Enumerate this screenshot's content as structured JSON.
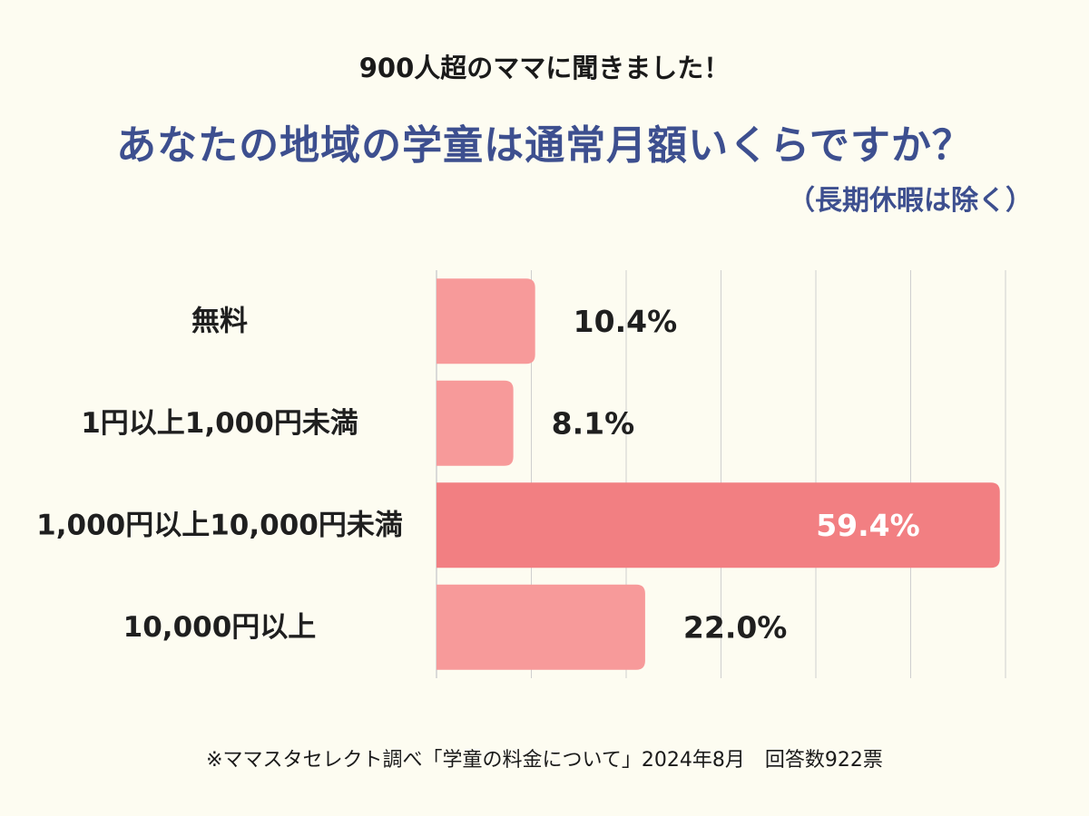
{
  "header": {
    "subtitle": "900人超のママに聞きました！",
    "title": "あなたの地域の学童は通常月額いくらですか？",
    "note": "（長期休暇は除く）"
  },
  "chart_data": {
    "type": "bar",
    "orientation": "horizontal",
    "categories": [
      "無料",
      "1円以上1,000円未満",
      "1,000円以上10,000円未満",
      "10,000円以上"
    ],
    "values": [
      10.4,
      8.1,
      59.4,
      22.0
    ],
    "value_labels": [
      "10.4%",
      "8.1%",
      "59.4%",
      "22.0%"
    ],
    "xlim": [
      0,
      60
    ],
    "grid": true,
    "colors": {
      "bar": "#f79a9a",
      "highlight_bar": "#f27f82",
      "highlight_label": "#ffffff",
      "label": "#1f1f1f",
      "grid": "#cfcfcf",
      "title": "#3d4f8f"
    },
    "highlight_index": 2
  },
  "footer": {
    "source": "※ママスタセレクト調べ「学童の料金について」2024年8月　回答数922票"
  }
}
